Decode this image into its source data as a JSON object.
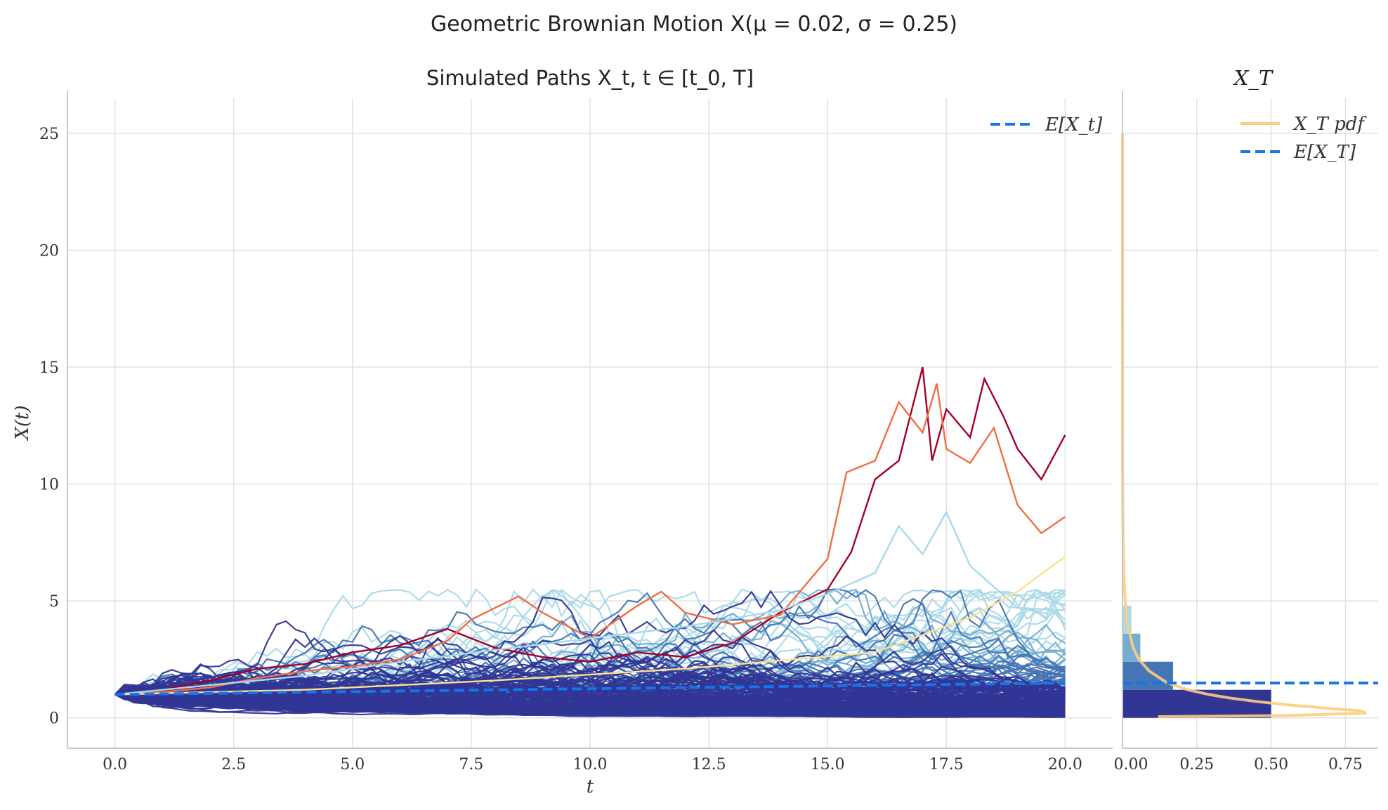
{
  "figure": {
    "suptitle": "Geometric Brownian Motion X(μ = 0.02, σ = 0.25)"
  },
  "colors": {
    "expectation": "#1874e8",
    "pdf": "#ffcc80",
    "grid": "#e2e2e2",
    "spine": "#c8c8c8",
    "path_palette": [
      "#313695",
      "#4575b4",
      "#74add1",
      "#abd9e9",
      "#fee090",
      "#f46d43",
      "#a50026"
    ]
  },
  "chart_data": [
    {
      "type": "line",
      "title": "Simulated Paths X_t, t ∈ [t_0, T]",
      "xlabel": "t",
      "ylabel": "X(t)",
      "xlim": [
        -1,
        21
      ],
      "ylim": [
        -1.3,
        26.5
      ],
      "xticks": [
        "0.0",
        "2.5",
        "5.0",
        "7.5",
        "10.0",
        "12.5",
        "15.0",
        "17.5",
        "20.0"
      ],
      "yticks": [
        "0",
        "5",
        "10",
        "15",
        "20",
        "25"
      ],
      "grid": true,
      "legend": {
        "position": "top-right",
        "entries": [
          "E[X_t]"
        ]
      },
      "expectation": {
        "name": "E[X_t]",
        "x": [
          0,
          20
        ],
        "y": [
          1.0,
          1.49
        ]
      },
      "highlighted_series": [
        {
          "color": "#a50026",
          "x": [
            0,
            1,
            2,
            3,
            4,
            5,
            6,
            7,
            8,
            9,
            10,
            11,
            12,
            13,
            14,
            15,
            15.5,
            16,
            16.5,
            17,
            17.2,
            17.5,
            18,
            18.3,
            18.7,
            19,
            19.5,
            20
          ],
          "y": [
            1.0,
            1.2,
            1.6,
            2.1,
            2.3,
            2.8,
            3.1,
            3.8,
            3.0,
            2.6,
            2.4,
            2.8,
            2.6,
            3.2,
            4.5,
            5.5,
            7.1,
            10.2,
            11.0,
            15.0,
            11.0,
            13.2,
            12.0,
            14.5,
            12.9,
            11.5,
            10.2,
            12.1
          ]
        },
        {
          "color": "#f46d43",
          "x": [
            0,
            1,
            2,
            3,
            4,
            5,
            6,
            7,
            7.5,
            8,
            8.5,
            9,
            10,
            11,
            11.5,
            12,
            13,
            14,
            15,
            15.4,
            16,
            16.5,
            17,
            17.3,
            17.5,
            18,
            18.5,
            19,
            19.5,
            20
          ],
          "y": [
            1.0,
            1.1,
            1.3,
            1.7,
            2.0,
            2.2,
            2.5,
            3.3,
            4.2,
            4.7,
            5.2,
            4.5,
            3.4,
            4.8,
            5.4,
            4.5,
            4.0,
            4.4,
            6.8,
            10.5,
            11.0,
            13.5,
            12.2,
            14.3,
            11.5,
            10.9,
            12.4,
            9.1,
            7.9,
            8.6
          ]
        },
        {
          "color": "#abd9e9",
          "x": [
            0,
            2,
            4,
            6,
            8,
            10,
            12,
            14,
            15,
            16,
            16.5,
            17,
            17.5,
            18,
            19,
            20
          ],
          "y": [
            1.0,
            1.4,
            1.8,
            2.4,
            2.9,
            3.4,
            3.9,
            4.6,
            5.3,
            6.2,
            8.2,
            7.0,
            8.8,
            6.5,
            4.7,
            4.6
          ]
        },
        {
          "color": "#fee090",
          "x": [
            0,
            4,
            8,
            12,
            16,
            18,
            19,
            20
          ],
          "y": [
            1.0,
            1.2,
            1.6,
            2.1,
            2.8,
            4.3,
            5.4,
            6.9
          ]
        }
      ],
      "bulk_series": {
        "n_paths": 200,
        "t_start": 0,
        "t_end": 20,
        "steps": 100,
        "x0": 1.0,
        "mu": 0.02,
        "sigma": 0.25
      }
    },
    {
      "type": "bar",
      "orientation": "horizontal",
      "title": "X_T",
      "xlim": [
        0,
        0.86
      ],
      "ylim": [
        -1.3,
        26.5
      ],
      "xticks": [
        "0.00",
        "0.25",
        "0.50",
        "0.75"
      ],
      "grid": true,
      "legend": {
        "position": "top-right",
        "entries": [
          "X_T pdf",
          "E[X_T]"
        ]
      },
      "histogram": {
        "bin_edges": [
          0,
          1.2,
          2.4,
          3.6,
          4.8,
          6.0,
          7.2,
          8.4,
          9.6,
          10.8,
          12.0
        ],
        "density": [
          0.5,
          0.17,
          0.06,
          0.03,
          0.004,
          0.003,
          0.002,
          0.002,
          0.002,
          0.002
        ],
        "colors": [
          "#313695",
          "#4575b4",
          "#74add1",
          "#abd9e9",
          "#e0f3f8",
          "#fee090",
          "#fdae61",
          "#f46d43",
          "#d73027",
          "#a50026"
        ]
      },
      "pdf": {
        "name": "X_T pdf",
        "y": [
          0.05,
          0.1,
          0.2,
          0.3,
          0.4,
          0.55,
          0.7,
          0.85,
          1.0,
          1.2,
          1.5,
          2.0,
          2.5,
          3.0,
          4.0,
          5.0,
          6.0,
          8.0,
          10.0,
          14.0,
          18.0,
          25.0
        ],
        "x": [
          0.12,
          0.55,
          0.82,
          0.8,
          0.7,
          0.56,
          0.45,
          0.36,
          0.29,
          0.22,
          0.15,
          0.09,
          0.055,
          0.036,
          0.017,
          0.009,
          0.005,
          0.002,
          0.0008,
          0.0002,
          5e-05,
          0.0
        ]
      },
      "expectation": {
        "name": "E[X_T]",
        "value": 1.49
      }
    }
  ]
}
